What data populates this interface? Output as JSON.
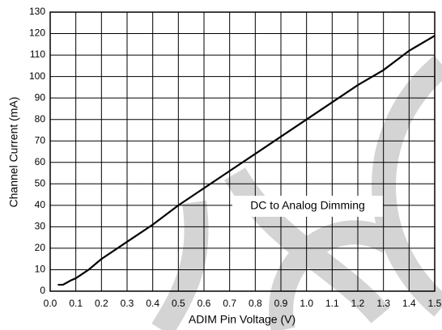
{
  "chart_data": {
    "type": "line",
    "xlabel": "ADIM Pin Voltage (V)",
    "ylabel": "Channel Current (mA)",
    "annotation": "DC to Analog Dimming",
    "x": [
      0.03,
      0.05,
      0.08,
      0.1,
      0.15,
      0.2,
      0.3,
      0.4,
      0.5,
      0.6,
      0.7,
      0.8,
      0.9,
      1.0,
      1.1,
      1.2,
      1.3,
      1.4,
      1.5
    ],
    "series": [
      {
        "color": "#000000",
        "values": [
          3,
          3,
          5,
          6,
          10,
          15,
          23,
          31,
          40,
          48,
          56,
          64,
          72,
          80,
          88,
          96,
          103,
          112,
          119
        ]
      }
    ],
    "xlim": [
      0,
      1.5
    ],
    "xticks": [
      {
        "value": 0,
        "label": "0.0"
      },
      0.1,
      0.2,
      0.3,
      0.4,
      0.5,
      0.6,
      0.7,
      0.8,
      0.9,
      {
        "value": 1,
        "label": "1.0"
      },
      1.1,
      1.2,
      1.3,
      1.4,
      1.5
    ],
    "ylim": [
      0,
      130
    ],
    "yticks": [
      0,
      10,
      20,
      30,
      40,
      50,
      60,
      70,
      80,
      90,
      100,
      110,
      120,
      130
    ],
    "grid": true
  }
}
